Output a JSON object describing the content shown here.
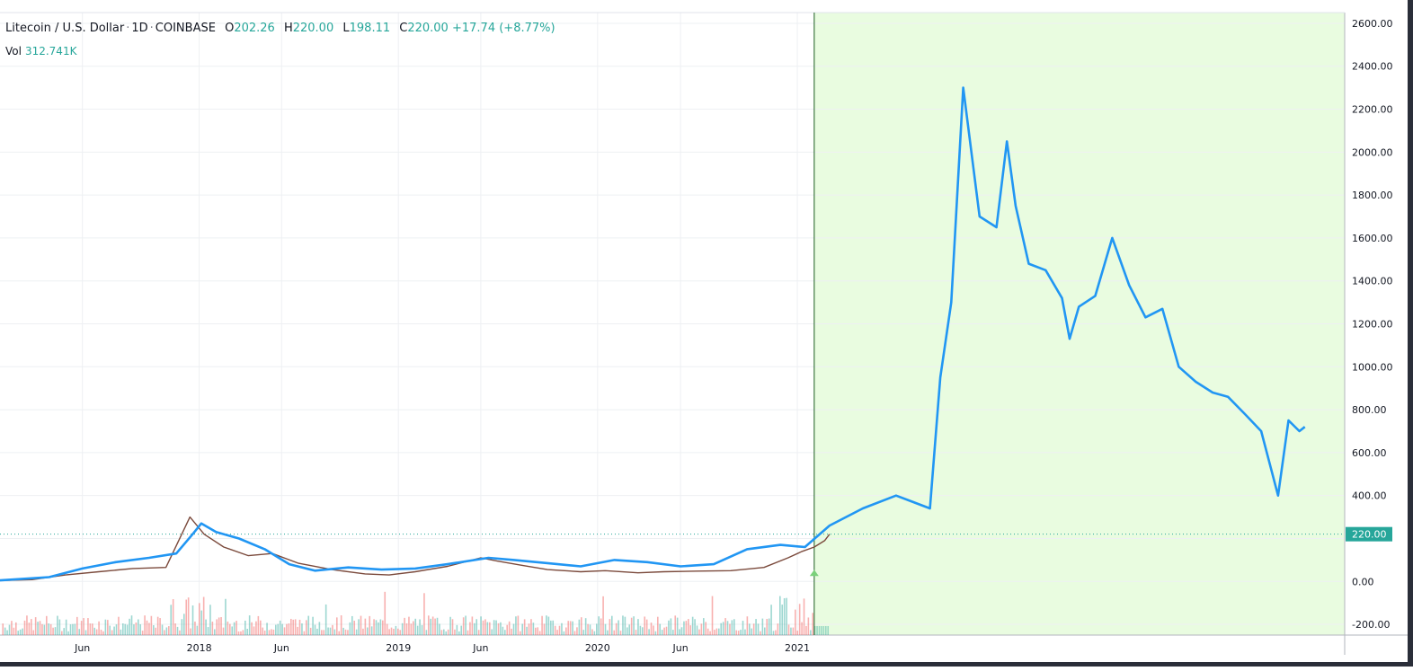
{
  "legend": {
    "symbol": "Litecoin / U.S. Dollar",
    "interval": "1D",
    "exchange": "COINBASE",
    "open_label": "O",
    "open": "202.26",
    "high_label": "H",
    "high": "220.00",
    "low_label": "L",
    "low": "198.11",
    "close_label": "C",
    "close": "220.00",
    "change": "+17.74 (+8.77%)",
    "volume_label": "Vol",
    "volume": "312.741K"
  },
  "current_price_label": "220.00",
  "colors": {
    "forecast_line": "#2196f3",
    "up": "#26a69a",
    "down": "#ef5350",
    "projection_bg": "#e9fce0",
    "projection_border": "#1b5e20",
    "grid": "#eef0f3",
    "price_tag": "#26a69a"
  },
  "chart_data": {
    "type": "line",
    "title": "",
    "xlabel": "",
    "ylabel": "",
    "ylim": [
      -250,
      2650
    ],
    "grid": true,
    "yticks": [
      -200,
      0,
      200,
      400,
      600,
      800,
      1000,
      1200,
      1400,
      1600,
      1800,
      2000,
      2200,
      2400,
      2600
    ],
    "ytick_labels": [
      "-200.00",
      "0.00",
      "",
      "400.00",
      "600.00",
      "800.00",
      "1000.00",
      "1200.00",
      "1400.00",
      "1600.00",
      "1800.00",
      "2000.00",
      "2200.00",
      "2400.00",
      "2600.00"
    ],
    "xticks": [
      "Jun",
      "2018",
      "Jun",
      "2019",
      "Jun",
      "2020",
      "Jun",
      "2021"
    ],
    "xtick_dates": [
      "2017-06-01",
      "2018-01-01",
      "2018-06-01",
      "2019-01-01",
      "2019-06-01",
      "2020-01-01",
      "2020-06-01",
      "2021-01-01"
    ],
    "xlim": [
      "2017-01-01",
      "2023-10-01"
    ],
    "current_price": 220,
    "projection_start": "2021-02-01",
    "series": [
      {
        "role": "price",
        "x": [
          "2017-01-01",
          "2017-03-01",
          "2017-05-01",
          "2017-07-01",
          "2017-09-01",
          "2017-11-01",
          "2017-12-15",
          "2018-01-10",
          "2018-02-15",
          "2018-04-01",
          "2018-05-15",
          "2018-07-01",
          "2018-09-01",
          "2018-11-01",
          "2018-12-15",
          "2019-02-01",
          "2019-04-01",
          "2019-06-01",
          "2019-07-01",
          "2019-08-15",
          "2019-10-01",
          "2019-12-01",
          "2020-01-15",
          "2020-03-15",
          "2020-05-01",
          "2020-07-01",
          "2020-09-01",
          "2020-11-01",
          "2020-12-15",
          "2021-01-10",
          "2021-02-01",
          "2021-02-20",
          "2021-03-01"
        ],
        "y": [
          4,
          8,
          30,
          45,
          60,
          65,
          300,
          220,
          160,
          120,
          130,
          85,
          55,
          35,
          30,
          45,
          70,
          110,
          95,
          75,
          55,
          45,
          50,
          40,
          45,
          48,
          50,
          65,
          110,
          140,
          160,
          190,
          220
        ]
      },
      {
        "role": "forecast",
        "x": [
          "2017-01-01",
          "2017-04-01",
          "2017-06-01",
          "2017-08-01",
          "2017-10-01",
          "2017-11-20",
          "2017-12-20",
          "2018-01-05",
          "2018-02-01",
          "2018-03-15",
          "2018-05-01",
          "2018-06-15",
          "2018-08-01",
          "2018-10-01",
          "2018-12-01",
          "2019-02-01",
          "2019-04-01",
          "2019-06-15",
          "2019-08-01",
          "2019-10-01",
          "2019-12-01",
          "2020-02-01",
          "2020-04-01",
          "2020-06-01",
          "2020-08-01",
          "2020-10-01",
          "2020-12-01",
          "2021-01-15",
          "2021-03-01",
          "2021-05-01",
          "2021-07-01",
          "2021-09-01",
          "2021-09-20",
          "2021-10-10",
          "2021-11-01",
          "2021-12-01",
          "2022-01-01",
          "2022-01-20",
          "2022-02-05",
          "2022-03-01",
          "2022-04-01",
          "2022-05-01",
          "2022-05-15",
          "2022-06-01",
          "2022-07-01",
          "2022-08-01",
          "2022-09-01",
          "2022-10-01",
          "2022-11-01",
          "2022-12-01",
          "2023-01-01",
          "2023-02-01",
          "2023-03-01",
          "2023-04-01",
          "2023-05-01",
          "2023-06-01",
          "2023-06-20",
          "2023-07-10",
          "2023-07-20"
        ],
        "y": [
          5,
          20,
          60,
          90,
          110,
          130,
          220,
          270,
          230,
          200,
          150,
          80,
          50,
          65,
          55,
          60,
          80,
          110,
          100,
          85,
          70,
          100,
          90,
          70,
          80,
          150,
          170,
          160,
          260,
          340,
          400,
          340,
          950,
          1300,
          2300,
          1700,
          1650,
          2050,
          1750,
          1480,
          1450,
          1320,
          1130,
          1280,
          1330,
          1600,
          1380,
          1230,
          1270,
          1000,
          930,
          880,
          860,
          780,
          700,
          400,
          750,
          700,
          720
        ]
      }
    ]
  }
}
